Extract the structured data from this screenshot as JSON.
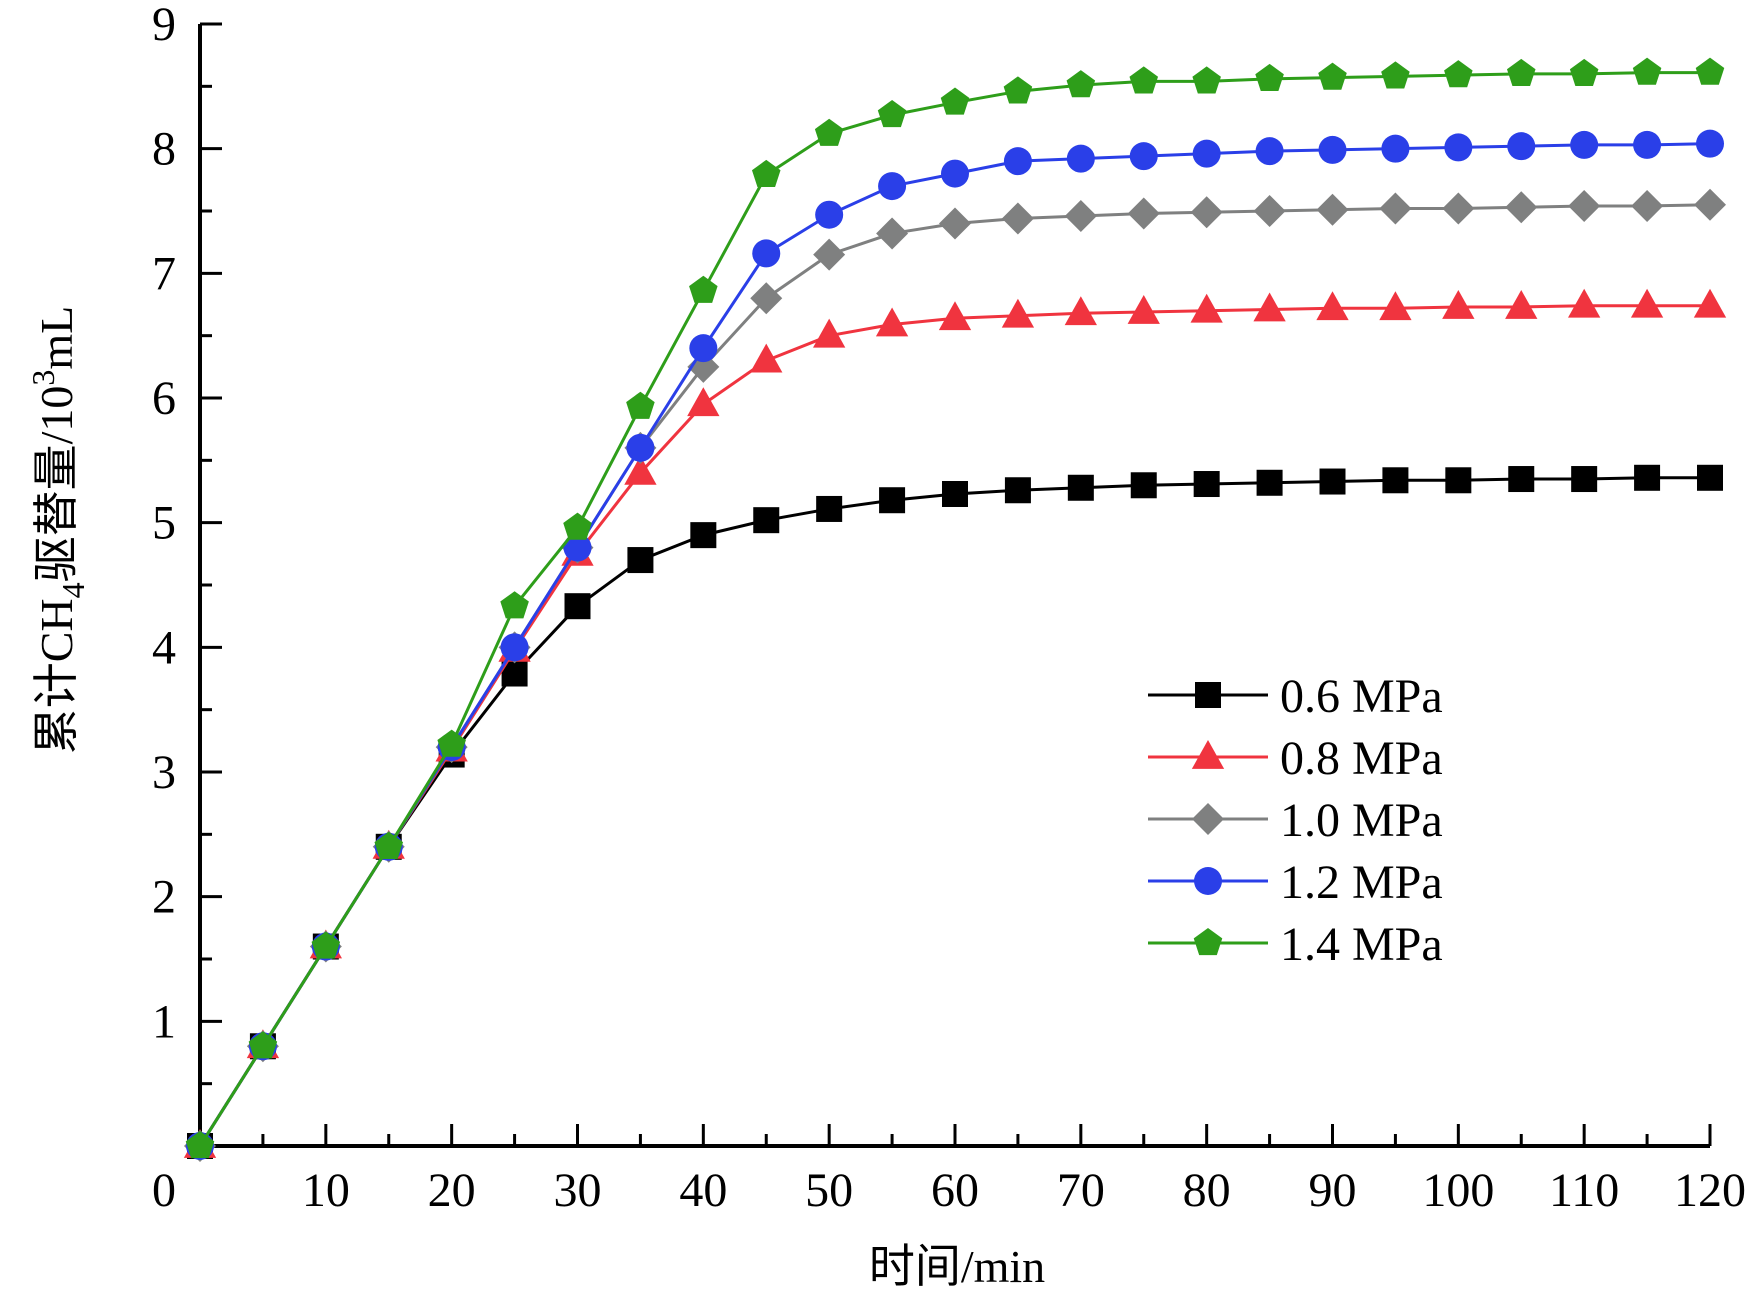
{
  "chart_data": {
    "type": "line",
    "title": "",
    "xlabel": "时间/min",
    "ylabel": {
      "main": "累计CH",
      "sub": "4",
      "rest": "驱替量/10",
      "sup": "3",
      "unit": "mL"
    },
    "xlim": [
      0,
      120
    ],
    "ylim": [
      0,
      9
    ],
    "x_ticks": [
      0,
      10,
      20,
      30,
      40,
      50,
      60,
      70,
      80,
      90,
      100,
      110,
      120
    ],
    "y_ticks": [
      1,
      2,
      3,
      4,
      5,
      6,
      7,
      8,
      9
    ],
    "grid": false,
    "legend_position": "right-middle",
    "x": [
      0,
      5,
      10,
      15,
      20,
      25,
      30,
      35,
      40,
      45,
      50,
      55,
      60,
      65,
      70,
      75,
      80,
      85,
      90,
      95,
      100,
      105,
      110,
      115,
      120
    ],
    "series": [
      {
        "name": "0.6 MPa",
        "color": "#000000",
        "marker": "square",
        "values": [
          0,
          0.8,
          1.6,
          2.4,
          3.14,
          3.79,
          4.33,
          4.7,
          4.9,
          5.02,
          5.11,
          5.18,
          5.23,
          5.26,
          5.28,
          5.3,
          5.31,
          5.32,
          5.33,
          5.34,
          5.34,
          5.35,
          5.35,
          5.36,
          5.36
        ]
      },
      {
        "name": "0.8 MPa",
        "color": "#f0343f",
        "marker": "triangle",
        "values": [
          0,
          0.8,
          1.6,
          2.4,
          3.18,
          3.98,
          4.75,
          5.4,
          5.95,
          6.3,
          6.5,
          6.59,
          6.64,
          6.66,
          6.68,
          6.69,
          6.7,
          6.71,
          6.72,
          6.72,
          6.73,
          6.73,
          6.74,
          6.74,
          6.74
        ]
      },
      {
        "name": "1.0 MPa",
        "color": "#7f8080",
        "marker": "diamond",
        "values": [
          0,
          0.8,
          1.6,
          2.4,
          3.2,
          4.0,
          4.8,
          5.6,
          6.25,
          6.8,
          7.15,
          7.32,
          7.4,
          7.44,
          7.46,
          7.48,
          7.49,
          7.5,
          7.51,
          7.52,
          7.52,
          7.53,
          7.54,
          7.54,
          7.55
        ]
      },
      {
        "name": "1.2 MPa",
        "color": "#2a3fe8",
        "marker": "circle",
        "values": [
          0,
          0.8,
          1.6,
          2.4,
          3.2,
          4.0,
          4.8,
          5.6,
          6.4,
          7.16,
          7.47,
          7.7,
          7.8,
          7.9,
          7.92,
          7.94,
          7.96,
          7.98,
          7.99,
          8.0,
          8.01,
          8.02,
          8.03,
          8.03,
          8.04
        ]
      },
      {
        "name": "1.4 MPa",
        "color": "#2e9e1a",
        "marker": "pentagon",
        "values": [
          0,
          0.8,
          1.6,
          2.4,
          3.22,
          4.33,
          4.96,
          5.93,
          6.86,
          7.79,
          8.12,
          8.27,
          8.37,
          8.46,
          8.51,
          8.54,
          8.54,
          8.56,
          8.57,
          8.58,
          8.59,
          8.6,
          8.6,
          8.61,
          8.61
        ]
      }
    ]
  }
}
